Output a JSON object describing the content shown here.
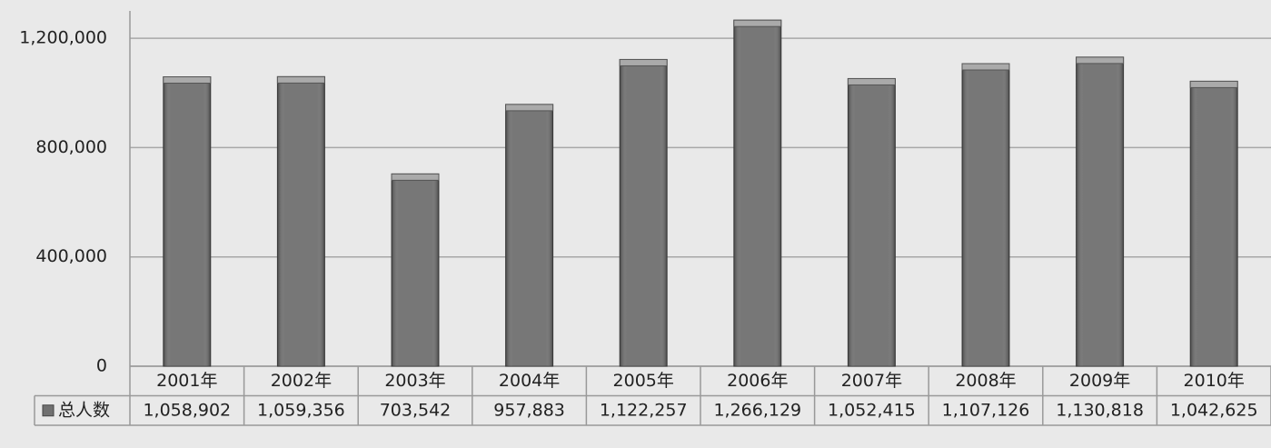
{
  "chart_data": {
    "type": "bar",
    "categories": [
      "2001年",
      "2002年",
      "2003年",
      "2004年",
      "2005年",
      "2006年",
      "2007年",
      "2008年",
      "2009年",
      "2010年"
    ],
    "series": [
      {
        "name": "总人数",
        "color": "#707070",
        "values": [
          1058902,
          1059356,
          703542,
          957883,
          1122257,
          1266129,
          1052415,
          1107126,
          1130818,
          1042625
        ],
        "value_labels": [
          "1,058,902",
          "1,059,356",
          "703,542",
          "957,883",
          "1,122,257",
          "1,266,129",
          "1,052,415",
          "1,107,126",
          "1,130,818",
          "1,042,625"
        ]
      }
    ],
    "ylim": [
      0,
      1300000
    ],
    "yticks": [
      0,
      {
        "value": 400000,
        "label": "400,000"
      },
      {
        "value": 800000,
        "label": "800,000"
      },
      {
        "value": 1200000,
        "label": "1,200,000"
      }
    ],
    "grid": true
  }
}
